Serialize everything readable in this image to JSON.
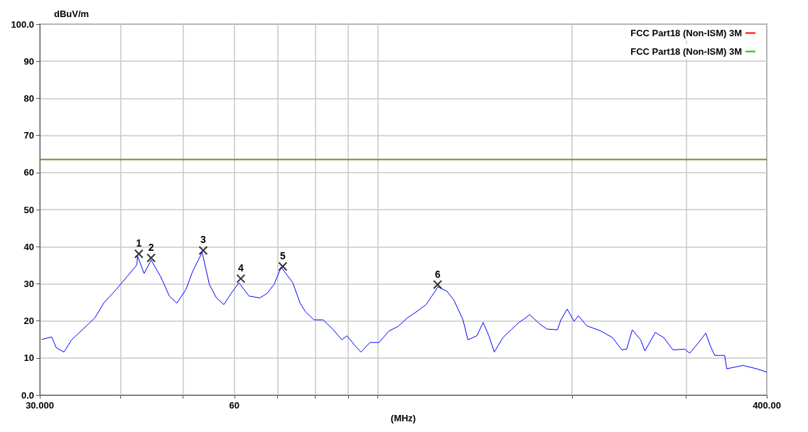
{
  "chart_data": {
    "type": "line",
    "xlabel": "(MHz)",
    "ylabel": "dBuV/m",
    "log": "x",
    "xlim": [
      30,
      400
    ],
    "ylim": [
      0,
      100
    ],
    "xticks": [
      {
        "value": 30,
        "label": "30.000"
      },
      {
        "value": 40,
        "label": null
      },
      {
        "value": 50,
        "label": null
      },
      {
        "value": 60,
        "label": "60"
      },
      {
        "value": 70,
        "label": null
      },
      {
        "value": 80,
        "label": null
      },
      {
        "value": 90,
        "label": null
      },
      {
        "value": 100,
        "label": null
      },
      {
        "value": 200,
        "label": null
      },
      {
        "value": 300,
        "label": null
      },
      {
        "value": 400,
        "label": "400.00"
      }
    ],
    "yticks": [
      {
        "value": 0,
        "label": "0.0"
      },
      10,
      20,
      30,
      40,
      50,
      60,
      70,
      80,
      90,
      {
        "value": 100,
        "label": "100.0"
      }
    ],
    "grid": true,
    "legend": "top right",
    "ref_lines": [
      {
        "axis": "y",
        "value": 63.5,
        "label": "FCC Part18 (Non-ISM) 3M",
        "color": "#ff0000"
      },
      {
        "axis": "y",
        "value": 63.5,
        "label": "FCC Part18 (Non-ISM) 3M",
        "color": "#00cc00"
      }
    ],
    "series": [
      {
        "color": "#0000ff",
        "x": [
          30.2,
          31.3,
          31.8,
          32.7,
          33.6,
          35.0,
          36.5,
          37.7,
          39.4,
          41.0,
          42.4,
          42.5,
          43.5,
          44.6,
          46.1,
          47.6,
          48.9,
          50.5,
          51.7,
          53.5,
          54.9,
          56.3,
          57.8,
          59.3,
          61.0,
          63.2,
          65.7,
          67.4,
          69.1,
          70.9,
          73.9,
          75.8,
          77.2,
          79.7,
          82.3,
          85.2,
          88.0,
          89.6,
          92.5,
          94.2,
          97.3,
          100.5,
          104.1,
          107.5,
          111.1,
          115.1,
          118.8,
          122.7,
          123.9,
          128.0,
          131.2,
          135.5,
          137.9,
          142.4,
          145.6,
          148.6,
          151.5,
          156.2,
          161.3,
          165.4,
          168.4,
          171.8,
          178.3,
          182.8,
          189.7,
          192.1,
          196.4,
          201.3,
          204.4,
          210.6,
          221.4,
          230.9,
          238.6,
          242.8,
          247.7,
          255.2,
          259.1,
          268.9,
          277.1,
          286.3,
          298.7,
          304.0,
          313.9,
          321.8,
          327.4,
          332.4,
          344.2,
          346.9,
          367.3,
          386.0,
          400
        ],
        "values": [
          15.0,
          15.7,
          12.8,
          11.6,
          14.9,
          17.8,
          20.8,
          24.9,
          28.5,
          32.1,
          35.1,
          37.5,
          32.8,
          36.4,
          32.1,
          26.7,
          24.8,
          28.5,
          33.3,
          38.5,
          29.8,
          26.2,
          24.4,
          27.4,
          30.3,
          26.7,
          26.2,
          27.4,
          29.8,
          34.5,
          30.3,
          24.9,
          22.6,
          20.3,
          20.3,
          17.8,
          14.9,
          16.0,
          13.1,
          11.6,
          14.2,
          14.2,
          17.3,
          18.5,
          20.8,
          22.6,
          24.4,
          28.0,
          29.2,
          28.0,
          25.6,
          20.3,
          14.9,
          16.0,
          19.6,
          16.0,
          11.6,
          15.5,
          17.8,
          19.6,
          20.5,
          21.7,
          19.1,
          17.8,
          17.6,
          20.3,
          23.2,
          19.9,
          21.4,
          18.7,
          17.3,
          15.5,
          12.2,
          12.4,
          17.6,
          14.9,
          11.9,
          16.9,
          15.5,
          12.2,
          12.4,
          11.3,
          14.2,
          16.7,
          13.1,
          10.7,
          10.7,
          7.1,
          8.0,
          7.1,
          6.2
        ]
      },
      {
        "type": "scatter",
        "marker": "cross",
        "color": "#000000",
        "x": [
          42.7,
          44.6,
          53.7,
          61.4,
          71.3,
          123.8
        ],
        "values": [
          38.1,
          37.0,
          39.0,
          31.4,
          34.7,
          29.8
        ]
      }
    ],
    "annotations": [
      {
        "text": "1",
        "x": 42.7,
        "y": 38.1
      },
      {
        "text": "2",
        "x": 44.6,
        "y": 37.0
      },
      {
        "text": "3",
        "x": 53.7,
        "y": 39.0
      },
      {
        "text": "4",
        "x": 61.4,
        "y": 31.4
      },
      {
        "text": "5",
        "x": 71.3,
        "y": 34.7
      },
      {
        "text": "6",
        "x": 123.8,
        "y": 29.8
      }
    ]
  }
}
